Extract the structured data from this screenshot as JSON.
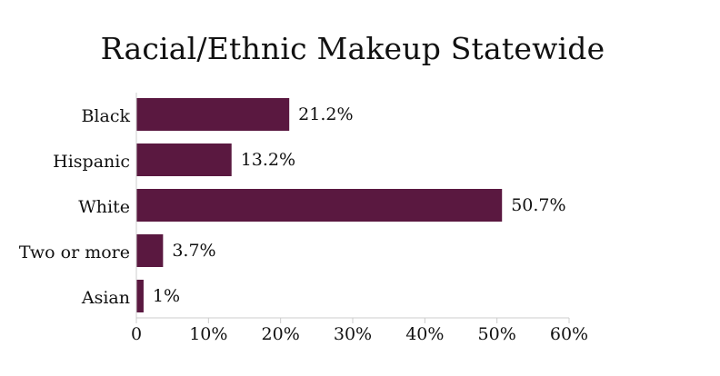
{
  "chart_data": {
    "type": "bar",
    "orientation": "horizontal",
    "title": "Racial/Ethnic Makeup Statewide",
    "categories": [
      "Black",
      "Hispanic",
      "White",
      "Two or more",
      "Asian"
    ],
    "values": [
      21.2,
      13.2,
      50.7,
      3.7,
      1
    ],
    "data_labels": [
      "21.2%",
      "13.2%",
      "50.7%",
      "3.7%",
      "1%"
    ],
    "x_ticks": [
      "0",
      "10%",
      "20%",
      "30%",
      "40%",
      "50%",
      "60%"
    ],
    "xlim": [
      0,
      60
    ],
    "xlabel": "",
    "ylabel": "",
    "grid": false,
    "legend": "none",
    "colors": {
      "bar": "#5a1840",
      "axis": "#cccccc",
      "text": "#111111"
    }
  }
}
